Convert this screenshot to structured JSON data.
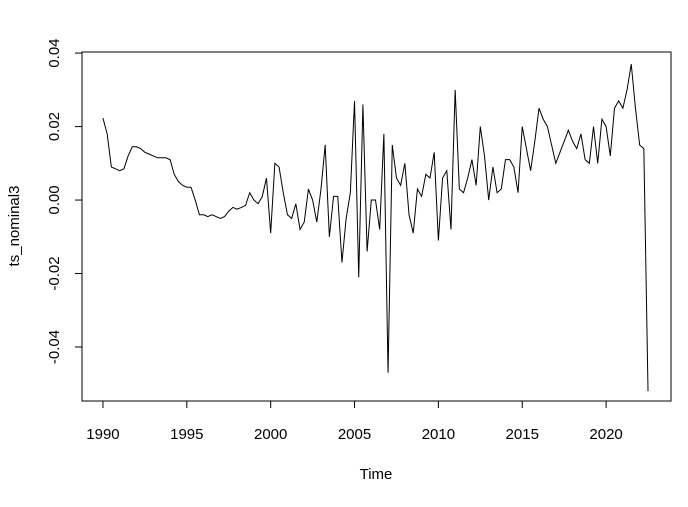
{
  "chart_data": {
    "type": "line",
    "x_label": "Time",
    "y_label": "ts_nominal3",
    "x": [
      1990,
      1990.25,
      1990.5,
      1990.75,
      1991,
      1991.25,
      1991.5,
      1991.75,
      1992,
      1992.25,
      1992.5,
      1992.75,
      1993,
      1993.25,
      1993.5,
      1993.75,
      1994,
      1994.25,
      1994.5,
      1994.75,
      1995,
      1995.25,
      1995.5,
      1995.75,
      1996,
      1996.25,
      1996.5,
      1996.75,
      1997,
      1997.25,
      1997.5,
      1997.75,
      1998,
      1998.25,
      1998.5,
      1998.75,
      1999,
      1999.25,
      1999.5,
      1999.75,
      2000,
      2000.25,
      2000.5,
      2000.75,
      2001,
      2001.25,
      2001.5,
      2001.75,
      2002,
      2002.25,
      2002.5,
      2002.75,
      2003,
      2003.25,
      2003.5,
      2003.75,
      2004,
      2004.25,
      2004.5,
      2004.75,
      2005,
      2005.25,
      2005.5,
      2005.75,
      2006,
      2006.25,
      2006.5,
      2006.75,
      2007,
      2007.25,
      2007.5,
      2007.75,
      2008,
      2008.25,
      2008.5,
      2008.75,
      2009,
      2009.25,
      2009.5,
      2009.75,
      2010,
      2010.25,
      2010.5,
      2010.75,
      2011,
      2011.25,
      2011.5,
      2011.75,
      2012,
      2012.25,
      2012.5,
      2012.75,
      2013,
      2013.25,
      2013.5,
      2013.75,
      2014,
      2014.25,
      2014.5,
      2014.75,
      2015,
      2015.25,
      2015.5,
      2015.75,
      2016,
      2016.25,
      2016.5,
      2016.75,
      2017,
      2017.25,
      2017.5,
      2017.75,
      2018,
      2018.25,
      2018.5,
      2018.75,
      2019,
      2019.25,
      2019.5,
      2019.75,
      2020,
      2020.25,
      2020.5,
      2020.75,
      2021,
      2021.25,
      2021.5,
      2021.75,
      2022,
      2022.25,
      2022.5
    ],
    "series": [
      {
        "color": "#000000",
        "values": [
          0.0223,
          0.018,
          0.009,
          0.0085,
          0.008,
          0.0085,
          0.012,
          0.0145,
          0.0145,
          0.014,
          0.013,
          0.0125,
          0.012,
          0.0115,
          0.0115,
          0.0115,
          0.011,
          0.007,
          0.005,
          0.004,
          0.0035,
          0.0035,
          0,
          -0.004,
          -0.004,
          -0.0045,
          -0.004,
          -0.0045,
          -0.005,
          -0.0045,
          -0.003,
          -0.002,
          -0.0025,
          -0.002,
          -0.0015,
          0.002,
          0,
          -0.001,
          0.001,
          0.006,
          -0.009,
          0.01,
          0.009,
          0.002,
          -0.004,
          -0.005,
          -0.001,
          -0.008,
          -0.006,
          0.003,
          0,
          -0.006,
          0.003,
          0.015,
          -0.01,
          0.001,
          0.001,
          -0.017,
          -0.005,
          0.002,
          0.027,
          -0.021,
          0.026,
          -0.014,
          0,
          0,
          -0.008,
          0.018,
          -0.047,
          0.015,
          0.006,
          0.004,
          0.01,
          -0.004,
          -0.009,
          0.003,
          0.001,
          0.007,
          0.006,
          0.013,
          -0.011,
          0.006,
          0.008,
          -0.008,
          0.03,
          0.003,
          0.002,
          0.006,
          0.011,
          0.004,
          0.02,
          0.012,
          0,
          0.009,
          0.002,
          0.003,
          0.011,
          0.011,
          0.009,
          0.002,
          0.02,
          0.014,
          0.008,
          0.016,
          0.025,
          0.022,
          0.02,
          0.015,
          0.01,
          0.013,
          0.016,
          0.019,
          0.016,
          0.014,
          0.018,
          0.011,
          0.01,
          0.02,
          0.01,
          0.022,
          0.02,
          0.012,
          0.025,
          0.027,
          0.025,
          0.03,
          0.037,
          0.025,
          0.015,
          0.014,
          -0.052
        ]
      }
    ],
    "xlim": [
      1988.75,
      2023.87
    ],
    "ylim": [
      -0.0547,
      0.0403
    ],
    "xticks": [
      1990,
      1995,
      2000,
      2005,
      2010,
      2015,
      2020
    ],
    "yticks": [
      -0.04,
      -0.02,
      {
        "value": 0,
        "label": "0.00"
      },
      0.02,
      0.04
    ]
  }
}
